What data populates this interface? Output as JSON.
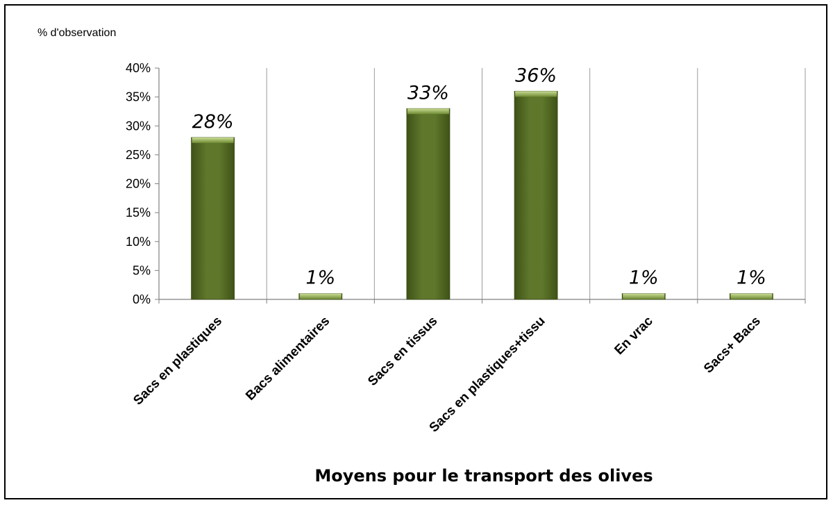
{
  "chart_data": {
    "type": "bar",
    "categories": [
      "Sacs en plastiques",
      "Bacs alimentaires",
      "Sacs en tissus",
      "Sacs en plastiques+tissu",
      "En vrac",
      "Sacs+ Bacs"
    ],
    "values": [
      28,
      1,
      33,
      36,
      1,
      1
    ],
    "data_labels": [
      "28%",
      "1%",
      "33%",
      "36%",
      "1%",
      "1%"
    ],
    "y_ticks": [
      "0%",
      "5%",
      "10%",
      "15%",
      "20%",
      "25%",
      "30%",
      "35%",
      "40%"
    ],
    "ylim": [
      0,
      40
    ],
    "title": "",
    "ylabel": "% d'observation",
    "xlabel": "Moyens pour le transport des olives",
    "grid": "vertical",
    "bar_color": "#5a7127",
    "bar_highlight": "#a9c16b"
  }
}
